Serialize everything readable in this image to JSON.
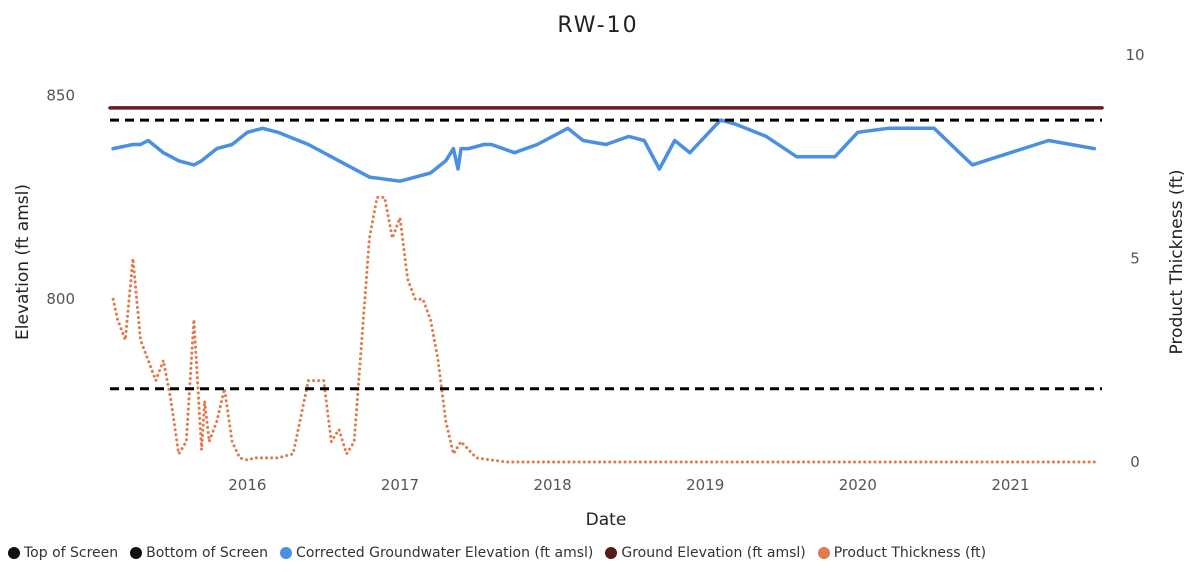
{
  "chart_data": {
    "type": "line",
    "title": "RW-10",
    "xlabel": "Date",
    "ylabel_left": "Elevation (ft amsl)",
    "ylabel_right": "Product Thickness (ft)",
    "x_range": [
      2015.1,
      2021.6
    ],
    "x_ticks": [
      "2016",
      "2017",
      "2018",
      "2019",
      "2020",
      "2021"
    ],
    "x_tick_values": [
      2016,
      2017,
      2018,
      2019,
      2020,
      2021
    ],
    "y_left_range": [
      760,
      860
    ],
    "y_left_ticks": [
      800,
      850
    ],
    "y_right_range": [
      0,
      10
    ],
    "y_right_ticks": [
      0,
      5,
      10
    ],
    "grid": false,
    "legend_position": "bottom-left",
    "series": [
      {
        "name": "Top of Screen",
        "axis": "left",
        "style": "dashed",
        "color": "#000000",
        "x": [
          2015.1,
          2021.6
        ],
        "y": [
          844,
          844
        ]
      },
      {
        "name": "Bottom of Screen",
        "axis": "left",
        "style": "dashed",
        "color": "#000000",
        "x": [
          2015.1,
          2021.6
        ],
        "y": [
          778,
          778
        ]
      },
      {
        "name": "Corrected Groundwater Elevation (ft amsl)",
        "axis": "left",
        "style": "solid",
        "color": "#4a90e2",
        "x": [
          2015.12,
          2015.25,
          2015.3,
          2015.35,
          2015.45,
          2015.55,
          2015.65,
          2015.7,
          2015.8,
          2015.9,
          2016.0,
          2016.1,
          2016.2,
          2016.4,
          2016.6,
          2016.8,
          2017.0,
          2017.2,
          2017.3,
          2017.35,
          2017.38,
          2017.4,
          2017.45,
          2017.55,
          2017.6,
          2017.75,
          2017.9,
          2018.1,
          2018.2,
          2018.35,
          2018.5,
          2018.6,
          2018.7,
          2018.8,
          2018.9,
          2019.1,
          2019.2,
          2019.4,
          2019.6,
          2019.85,
          2020.0,
          2020.2,
          2020.5,
          2020.75,
          2021.0,
          2021.25,
          2021.55
        ],
        "y": [
          837,
          838,
          838,
          839,
          836,
          834,
          833,
          834,
          837,
          838,
          841,
          842,
          841,
          838,
          834,
          830,
          829,
          831,
          834,
          837,
          832,
          837,
          837,
          838,
          838,
          836,
          838,
          842,
          839,
          838,
          840,
          839,
          832,
          839,
          836,
          844,
          843,
          840,
          835,
          835,
          841,
          842,
          842,
          833,
          836,
          839,
          837
        ]
      },
      {
        "name": "Ground Elevation (ft amsl)",
        "axis": "left",
        "style": "solid",
        "color": "#6b1e1e",
        "x": [
          2015.1,
          2021.6
        ],
        "y": [
          847,
          847
        ]
      },
      {
        "name": "Product Thickness (ft)",
        "axis": "right",
        "style": "dotted",
        "color": "#e07a4f",
        "x": [
          2015.12,
          2015.15,
          2015.2,
          2015.25,
          2015.3,
          2015.35,
          2015.4,
          2015.45,
          2015.5,
          2015.55,
          2015.6,
          2015.65,
          2015.7,
          2015.72,
          2015.75,
          2015.8,
          2015.85,
          2015.9,
          2015.95,
          2016.0,
          2016.05,
          2016.1,
          2016.2,
          2016.3,
          2016.4,
          2016.5,
          2016.55,
          2016.6,
          2016.65,
          2016.7,
          2016.75,
          2016.8,
          2016.85,
          2016.9,
          2016.95,
          2017.0,
          2017.05,
          2017.1,
          2017.15,
          2017.2,
          2017.25,
          2017.3,
          2017.35,
          2017.4,
          2017.5,
          2017.6,
          2017.7,
          2018.0,
          2018.5,
          2019.0,
          2019.5,
          2020.0,
          2020.5,
          2021.0,
          2021.55
        ],
        "y": [
          4.0,
          3.5,
          3.0,
          5.0,
          3.0,
          2.5,
          2.0,
          2.5,
          1.5,
          0.2,
          0.5,
          3.5,
          0.3,
          1.5,
          0.5,
          1.0,
          1.8,
          0.5,
          0.1,
          0.05,
          0.1,
          0.1,
          0.1,
          0.2,
          2.0,
          2.0,
          0.5,
          0.8,
          0.2,
          0.5,
          3.0,
          5.5,
          6.5,
          6.5,
          5.5,
          6.0,
          4.5,
          4.0,
          4.0,
          3.5,
          2.5,
          1.0,
          0.2,
          0.5,
          0.1,
          0.05,
          0.0,
          0.0,
          0.0,
          0.0,
          0.0,
          0.0,
          0.0,
          0.0,
          0.0
        ]
      }
    ],
    "legend": [
      {
        "label": "Top of Screen",
        "color": "#111111"
      },
      {
        "label": "Bottom of Screen",
        "color": "#111111"
      },
      {
        "label": "Corrected Groundwater Elevation (ft amsl)",
        "color": "#4a90e2"
      },
      {
        "label": "Ground Elevation (ft amsl)",
        "color": "#5a1a1a"
      },
      {
        "label": "Product Thickness (ft)",
        "color": "#e07a4f"
      }
    ]
  }
}
